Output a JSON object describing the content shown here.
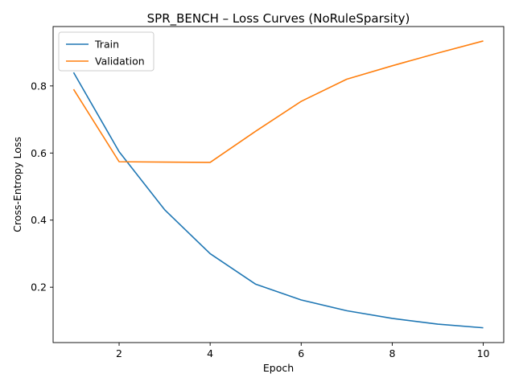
{
  "chart_data": {
    "type": "line",
    "title": "SPR_BENCH – Loss Curves (NoRuleSparsity)",
    "xlabel": "Epoch",
    "ylabel": "Cross-Entropy Loss",
    "x": [
      1,
      2,
      3,
      4,
      5,
      6,
      7,
      8,
      9,
      10
    ],
    "xlim": [
      0.55,
      10.45
    ],
    "ylim": [
      0.035,
      0.977
    ],
    "xticks": [
      2,
      4,
      6,
      8,
      10
    ],
    "yticks": [
      0.2,
      0.4,
      0.6,
      0.8
    ],
    "xtick_labels": [
      "2",
      "4",
      "6",
      "8",
      "10"
    ],
    "ytick_labels": [
      "0.2",
      "0.4",
      "0.6",
      "0.8"
    ],
    "grid": false,
    "legend_position": "top-left",
    "series": [
      {
        "name": "Train",
        "color": "#1f77b4",
        "values": [
          0.84,
          0.604,
          0.431,
          0.3,
          0.209,
          0.162,
          0.13,
          0.107,
          0.09,
          0.079
        ]
      },
      {
        "name": "Validation",
        "color": "#ff7f0e",
        "values": [
          0.79,
          0.574,
          0.573,
          0.572,
          0.665,
          0.754,
          0.82,
          0.86,
          0.898,
          0.934
        ]
      }
    ]
  }
}
